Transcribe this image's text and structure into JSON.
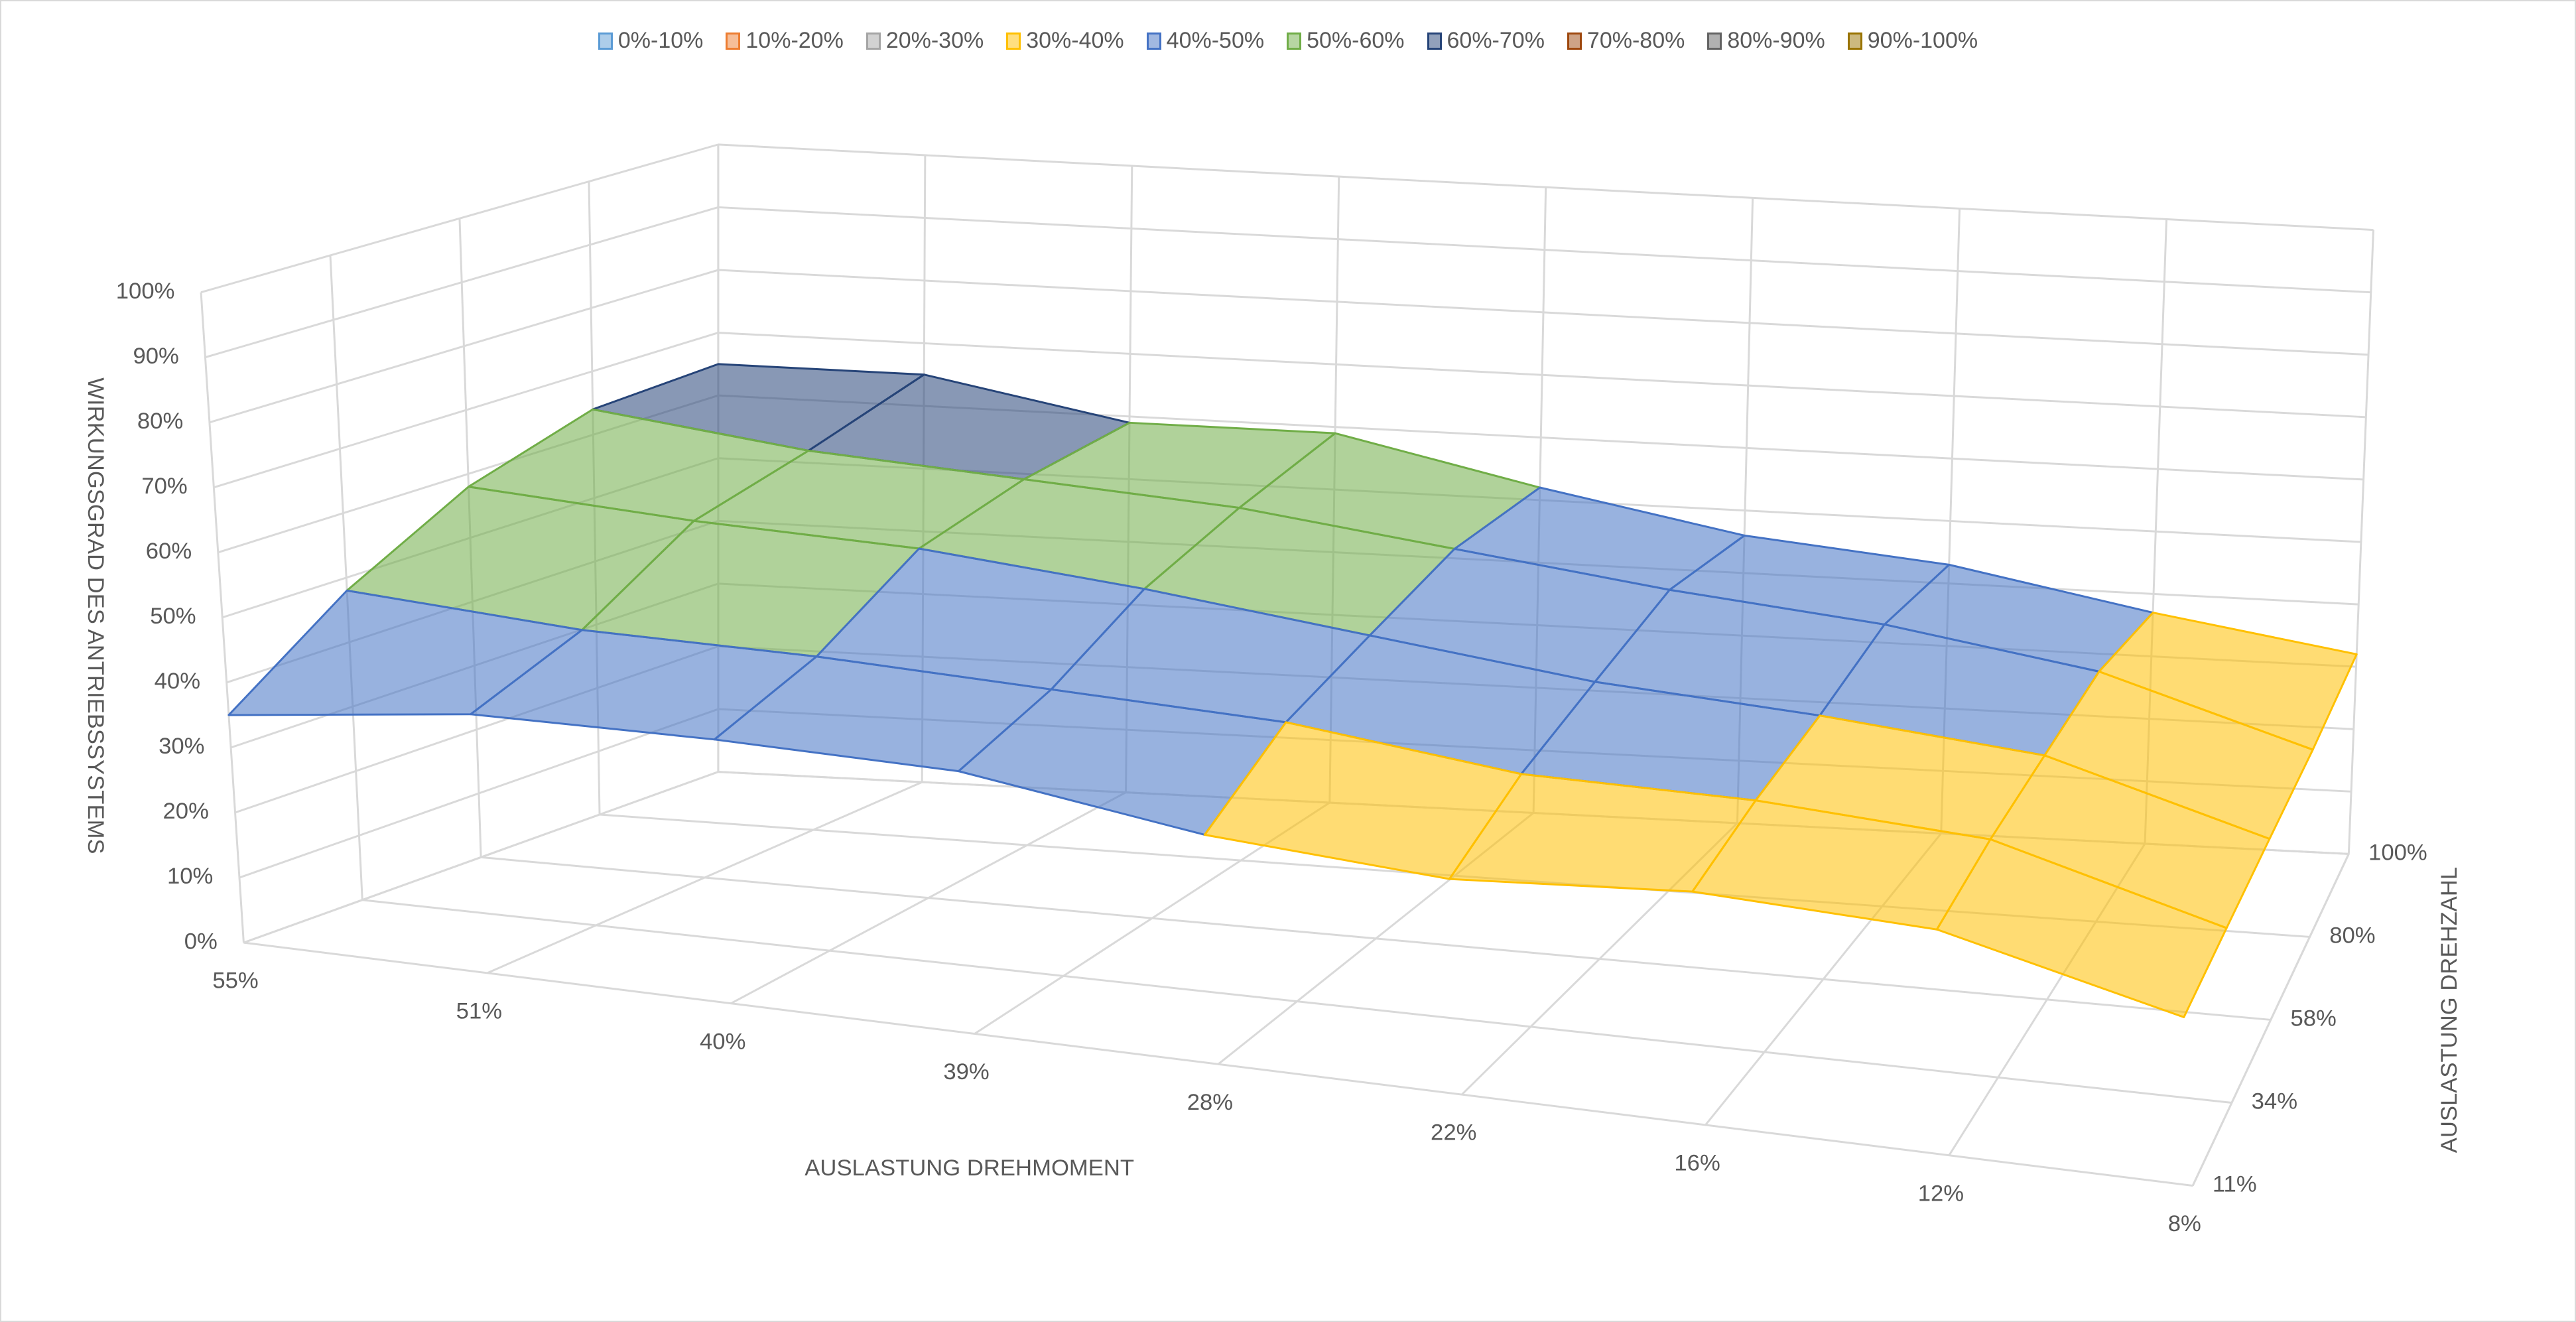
{
  "chart_data": {
    "type": "surface",
    "title": "",
    "zlabel": "WIRKUNGSGRAD DES ANTRIEBSSYSTEMS",
    "xlabel": "AUSLASTUNG DREHMOMENT",
    "ylabel": "AUSLASTUNG DREHZAHL",
    "x_categories": [
      "55%",
      "51%",
      "40%",
      "39%",
      "28%",
      "22%",
      "16%",
      "12%",
      "8%"
    ],
    "series_names": [
      "11%",
      "34%",
      "58%",
      "80%",
      "100%"
    ],
    "z_ticks": [
      "0%",
      "10%",
      "20%",
      "30%",
      "40%",
      "50%",
      "60%",
      "70%",
      "80%",
      "90%",
      "100%"
    ],
    "zlim": [
      0,
      100
    ],
    "values": [
      [
        35,
        40,
        41,
        41,
        36,
        34,
        37,
        36,
        27
      ],
      [
        48,
        46,
        46,
        45,
        44,
        40,
        40,
        38,
        28
      ],
      [
        58,
        56,
        55,
        52,
        48,
        44,
        42,
        39,
        29
      ],
      [
        64,
        60,
        58,
        56,
        52,
        48,
        45,
        40,
        30
      ],
      [
        65,
        65,
        59,
        59,
        52,
        46,
        43,
        37,
        32
      ]
    ],
    "legend_position": "top",
    "bands": [
      {
        "label": "0%-10%",
        "color": "#5b9bd5"
      },
      {
        "label": "10%-20%",
        "color": "#ed7d31"
      },
      {
        "label": "20%-30%",
        "color": "#a5a5a5"
      },
      {
        "label": "30%-40%",
        "color": "#ffc000"
      },
      {
        "label": "40%-50%",
        "color": "#4472c4"
      },
      {
        "label": "50%-60%",
        "color": "#70ad47"
      },
      {
        "label": "60%-70%",
        "color": "#264478"
      },
      {
        "label": "70%-80%",
        "color": "#9e480e"
      },
      {
        "label": "80%-90%",
        "color": "#636363"
      },
      {
        "label": "90%-100%",
        "color": "#997300"
      }
    ]
  }
}
